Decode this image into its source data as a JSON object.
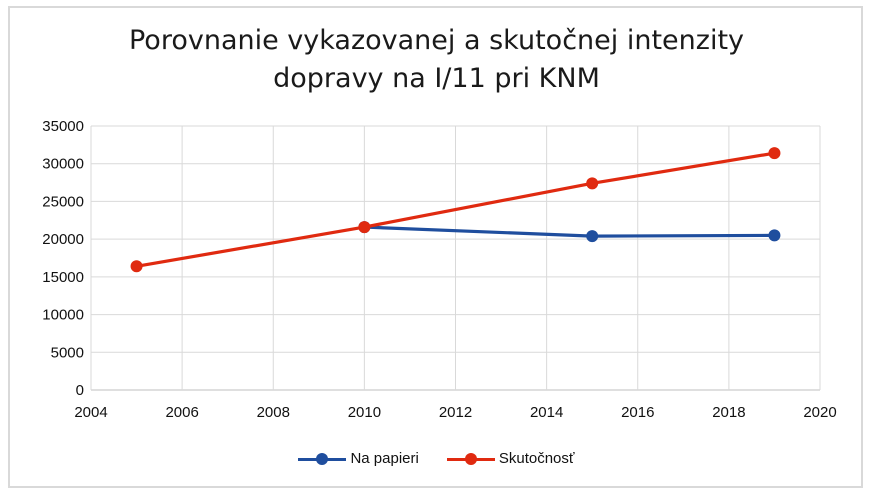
{
  "chart_data": {
    "type": "line",
    "title_lines": [
      "Porovnanie vykazovanej a skutočnej intenzity",
      "dopravy na I/11 pri KNM"
    ],
    "xlabel": "",
    "ylabel": "",
    "xlim": [
      2004,
      2020
    ],
    "ylim": [
      0,
      35000
    ],
    "xticks": [
      2004,
      2006,
      2008,
      2010,
      2012,
      2014,
      2016,
      2018,
      2020
    ],
    "yticks": [
      0,
      5000,
      10000,
      15000,
      20000,
      25000,
      30000,
      35000
    ],
    "grid": true,
    "legend_position": "bottom",
    "series": [
      {
        "name": "Na papieri",
        "color": "#1f4e9e",
        "x": [
          2010,
          2015,
          2019
        ],
        "y": [
          21600,
          20400,
          20500
        ]
      },
      {
        "name": "Skutočnosť",
        "color": "#e02a10",
        "x": [
          2005,
          2010,
          2015,
          2019
        ],
        "y": [
          16400,
          21600,
          27400,
          31400
        ]
      }
    ]
  }
}
